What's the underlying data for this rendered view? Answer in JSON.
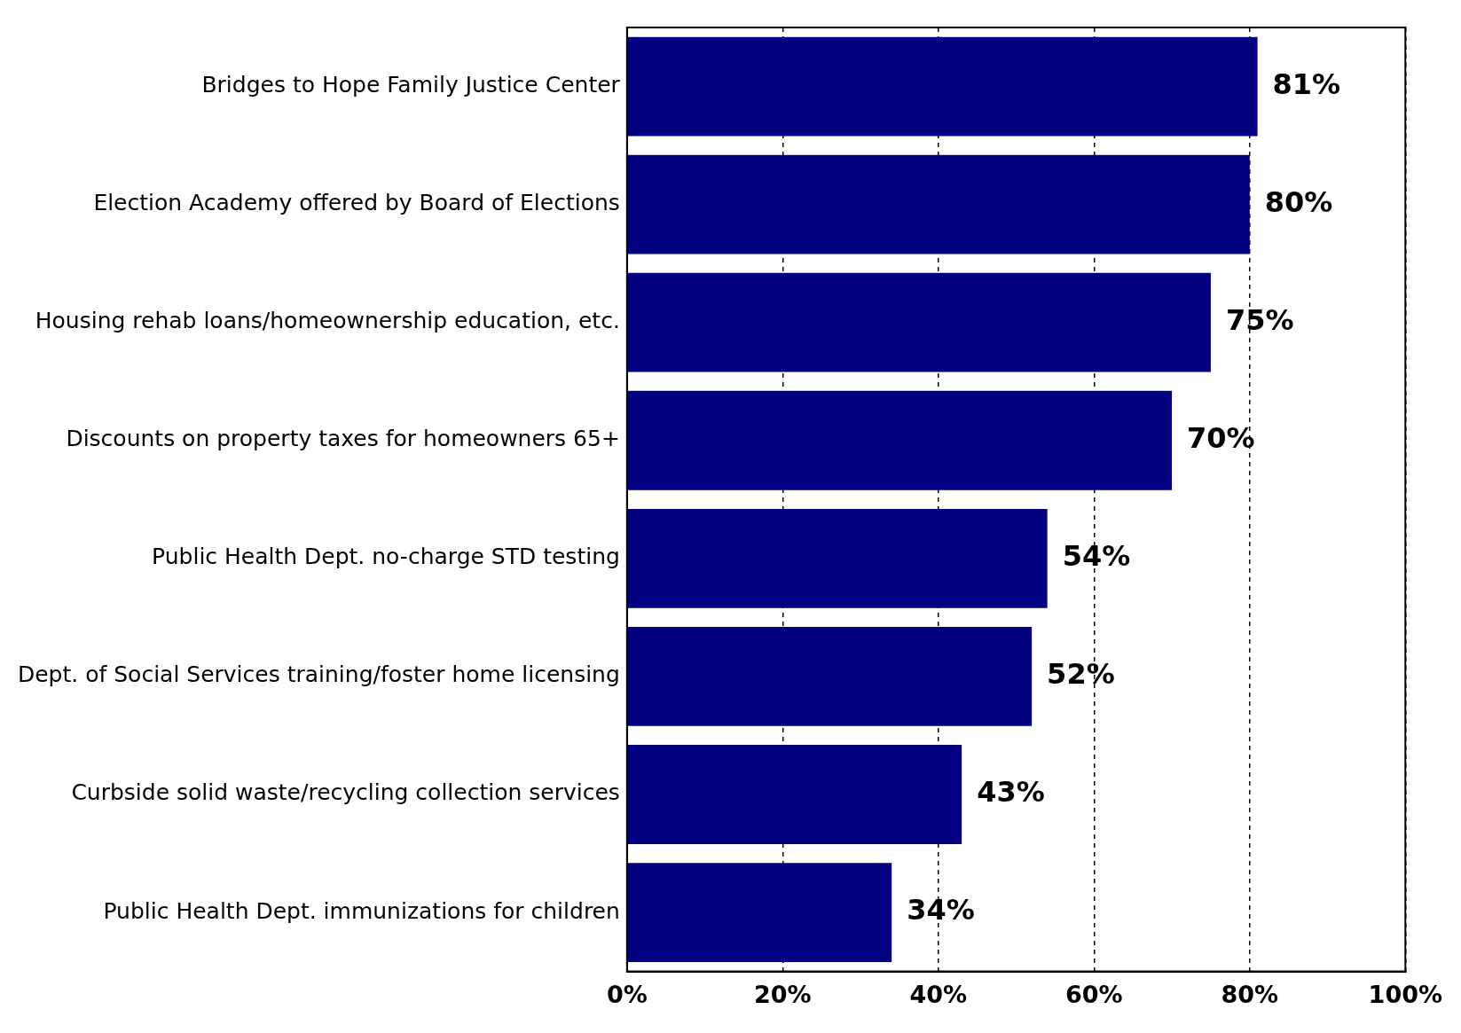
{
  "chart_data": {
    "type": "bar",
    "orientation": "horizontal",
    "categories": [
      "Bridges to Hope Family Justice Center",
      "Election Academy offered by Board of Elections",
      "Housing rehab loans/homeownership education, etc.",
      "Discounts on property taxes for homeowners 65+",
      "Public Health Dept. no-charge STD testing",
      "Dept. of Social Services training/foster home licensing",
      "Curbside solid waste/recycling collection services",
      "Public Health Dept. immunizations for children"
    ],
    "values": [
      81,
      80,
      75,
      70,
      54,
      52,
      43,
      34
    ],
    "value_labels": [
      "81%",
      "80%",
      "75%",
      "70%",
      "54%",
      "52%",
      "43%",
      "34%"
    ],
    "color": "#000080",
    "xlim": [
      0,
      100
    ],
    "xticks": [
      {
        "value": 0,
        "label": "0%"
      },
      {
        "value": 20,
        "label": "20%"
      },
      {
        "value": 40,
        "label": "40%"
      },
      {
        "value": 60,
        "label": "60%"
      },
      {
        "value": 80,
        "label": "80%"
      },
      {
        "value": 100,
        "label": "100%"
      }
    ],
    "grid": "x",
    "legend": false
  }
}
